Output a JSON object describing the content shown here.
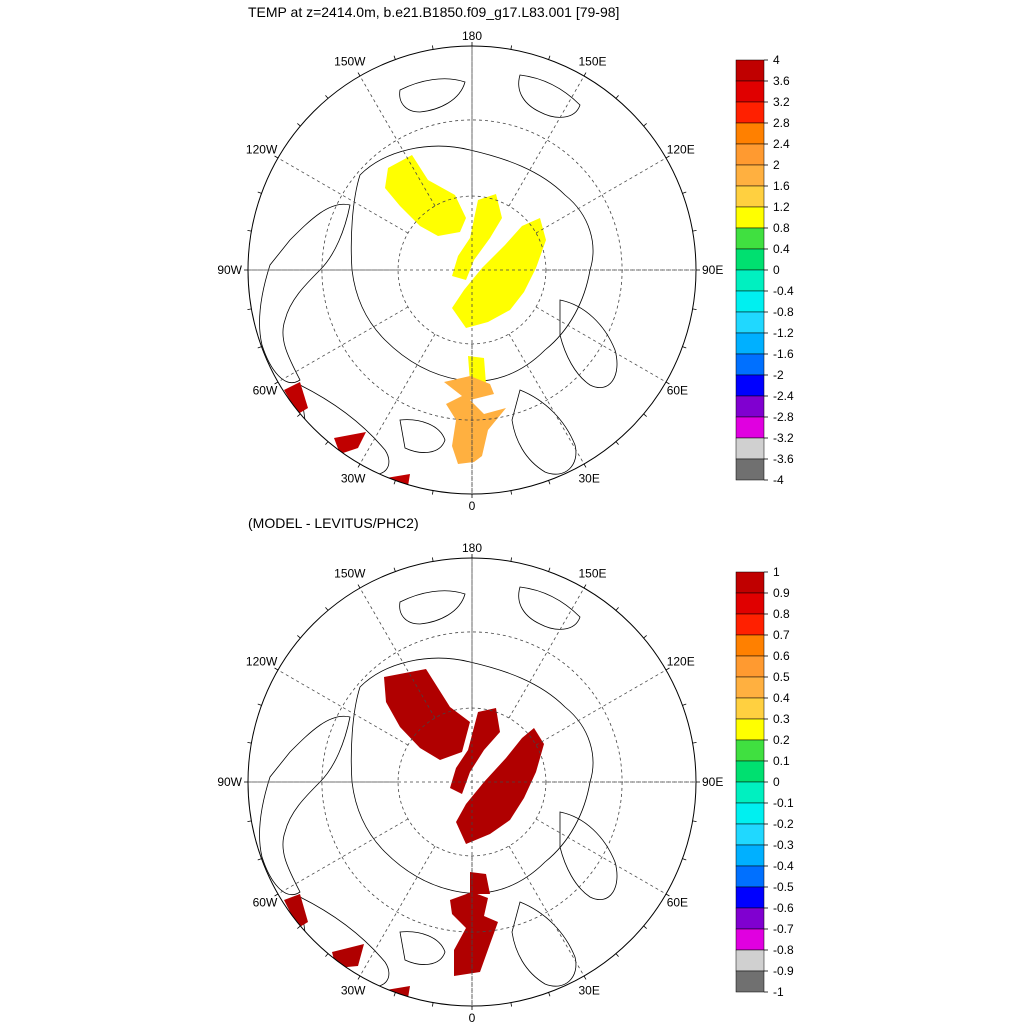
{
  "top_panel": {
    "title": "TEMP at z=2414.0m, b.e21.B1850.f09_g17.L83.001 [79-98]",
    "longitude_labels": [
      "180",
      "150E",
      "120E",
      "90E",
      "60E",
      "30E",
      "0",
      "30W",
      "60W",
      "90W",
      "120W",
      "150W"
    ],
    "colorbar": {
      "levels": [
        "4",
        "3.6",
        "3.2",
        "2.8",
        "2.4",
        "2",
        "1.6",
        "1.2",
        "0.8",
        "0.4",
        "0",
        "-0.4",
        "-0.8",
        "-1.2",
        "-1.6",
        "-2",
        "-2.4",
        "-2.8",
        "-3.2",
        "-3.6",
        "-4"
      ],
      "colors": [
        "#c00000",
        "#e00000",
        "#ff2000",
        "#ff8000",
        "#ff9a30",
        "#ffb040",
        "#ffd040",
        "#ffff00",
        "#40e040",
        "#00e070",
        "#00f0c0",
        "#00f0f0",
        "#20d8ff",
        "#00b0ff",
        "#0070ff",
        "#0000ff",
        "#8000d0",
        "#e000e0",
        "#d0d0d0",
        "#707070"
      ]
    }
  },
  "bottom_panel": {
    "title": "(MODEL - LEVITUS/PHC2)",
    "longitude_labels": [
      "180",
      "150E",
      "120E",
      "90E",
      "60E",
      "30E",
      "0",
      "30W",
      "60W",
      "90W",
      "120W",
      "150W"
    ],
    "colorbar": {
      "levels": [
        "1",
        "0.9",
        "0.8",
        "0.7",
        "0.6",
        "0.5",
        "0.4",
        "0.3",
        "0.2",
        "0.1",
        "0",
        "-0.1",
        "-0.2",
        "-0.3",
        "-0.4",
        "-0.5",
        "-0.6",
        "-0.7",
        "-0.8",
        "-0.9",
        "-1"
      ],
      "colors": [
        "#c00000",
        "#e00000",
        "#ff2000",
        "#ff8000",
        "#ff9a30",
        "#ffb040",
        "#ffd040",
        "#ffff00",
        "#40e040",
        "#00e070",
        "#00f0c0",
        "#00f0f0",
        "#20d8ff",
        "#00b0ff",
        "#0070ff",
        "#0000ff",
        "#8000d0",
        "#e000e0",
        "#d0d0d0",
        "#707070"
      ]
    }
  },
  "map_colors": {
    "top_yellow": "#ffff00",
    "top_orange": "#ffb040",
    "top_red": "#c00000",
    "bottom_red": "#b00000"
  }
}
